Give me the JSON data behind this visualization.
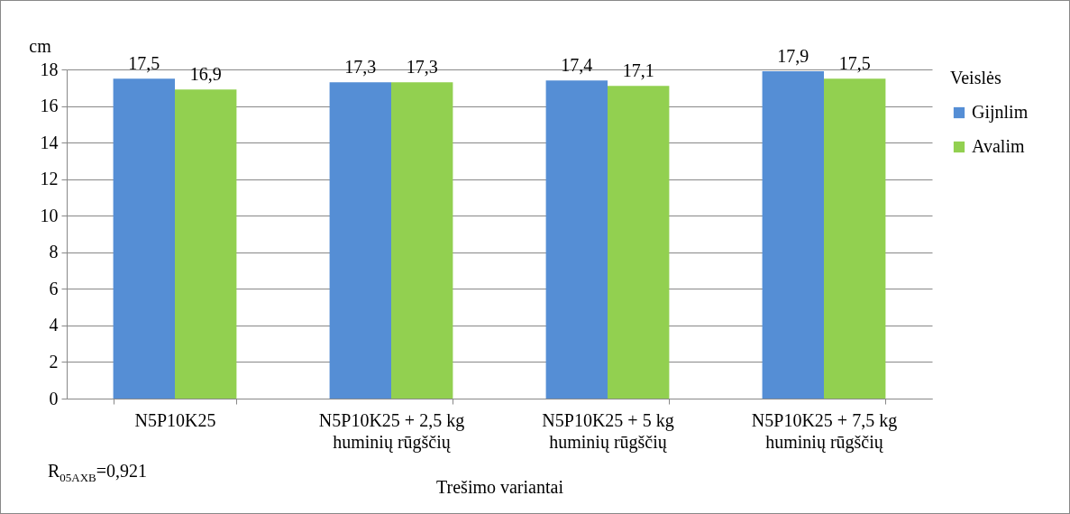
{
  "chart_data": {
    "type": "bar",
    "ylabel": "cm",
    "xlabel": "Trešimo variantai",
    "legend_title": "Veislės",
    "legend": "right",
    "grid": "y",
    "categories": [
      "N5P10K25",
      "N5P10K25 + 2,5 kg huminių rūgščių",
      "N5P10K25 + 5 kg huminių rūgščių",
      "N5P10K25 + 7,5 kg huminių rūgščių"
    ],
    "series": [
      {
        "name": "Gijnlim",
        "color": "#558ed5",
        "values": [
          17.5,
          17.3,
          17.4,
          17.9
        ],
        "value_labels": [
          "17,5",
          "17,3",
          "17,4",
          "17,9"
        ]
      },
      {
        "name": "Avalim",
        "color": "#92d050",
        "values": [
          16.9,
          17.3,
          17.1,
          17.5
        ],
        "value_labels": [
          "16,9",
          "17,3",
          "17,1",
          "17,5"
        ]
      }
    ],
    "ylim": [
      0,
      18
    ],
    "yticks": [
      0,
      2,
      4,
      6,
      8,
      10,
      12,
      14,
      16,
      18
    ],
    "annotations": [
      "R$_{05AXB}$=0,921"
    ]
  }
}
